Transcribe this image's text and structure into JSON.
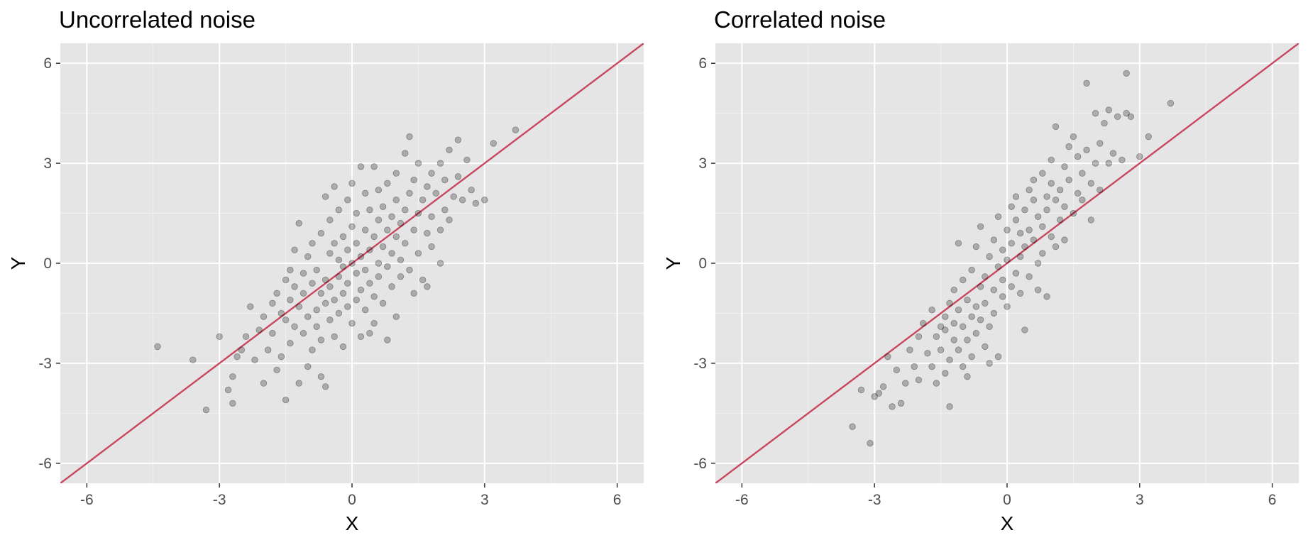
{
  "chart_data": [
    {
      "type": "scatter",
      "title": "Uncorrelated noise",
      "xlabel": "X",
      "ylabel": "Y",
      "xlim": [
        -6.6,
        6.6
      ],
      "ylim": [
        -6.6,
        6.6
      ],
      "xticks": [
        -6,
        -3,
        0,
        3,
        6
      ],
      "yticks": [
        -6,
        -3,
        0,
        3,
        6
      ],
      "xtick_labels": [
        "-6",
        "-3",
        "0",
        "3",
        "6"
      ],
      "ytick_labels": [
        "-6",
        "-3",
        "0",
        "3",
        "6"
      ],
      "grid": true,
      "panel_background": "#e5e5e5",
      "point_color": "#000000",
      "point_alpha": 0.25,
      "reference_line": {
        "slope": 1,
        "intercept": 0,
        "color": "#c8475f"
      },
      "points": [
        [
          -4.4,
          -2.5
        ],
        [
          -3.6,
          -2.9
        ],
        [
          -3.3,
          -4.4
        ],
        [
          -3.0,
          -2.2
        ],
        [
          -2.8,
          -3.8
        ],
        [
          -2.7,
          -4.2
        ],
        [
          -2.7,
          -3.4
        ],
        [
          -2.6,
          -2.8
        ],
        [
          -2.5,
          -2.6
        ],
        [
          -2.4,
          -2.2
        ],
        [
          -2.3,
          -1.3
        ],
        [
          -2.2,
          -2.9
        ],
        [
          -2.1,
          -2.0
        ],
        [
          -2.0,
          -3.6
        ],
        [
          -2.0,
          -1.6
        ],
        [
          -1.9,
          -2.6
        ],
        [
          -1.8,
          -2.1
        ],
        [
          -1.8,
          -1.2
        ],
        [
          -1.7,
          -0.9
        ],
        [
          -1.7,
          -3.2
        ],
        [
          -1.6,
          -1.5
        ],
        [
          -1.6,
          -2.8
        ],
        [
          -1.5,
          -0.5
        ],
        [
          -1.5,
          -1.7
        ],
        [
          -1.5,
          -4.1
        ],
        [
          -1.4,
          -1.1
        ],
        [
          -1.4,
          -0.2
        ],
        [
          -1.4,
          -2.4
        ],
        [
          -1.3,
          -1.9
        ],
        [
          -1.3,
          -0.7
        ],
        [
          -1.3,
          0.4
        ],
        [
          -1.2,
          -3.6
        ],
        [
          -1.2,
          -1.3
        ],
        [
          -1.2,
          1.2
        ],
        [
          -1.1,
          -0.3
        ],
        [
          -1.1,
          -2.1
        ],
        [
          -1.1,
          -0.9
        ],
        [
          -1.0,
          -1.6
        ],
        [
          -1.0,
          0.2
        ],
        [
          -1.0,
          -3.1
        ],
        [
          -0.9,
          -0.6
        ],
        [
          -0.9,
          -2.6
        ],
        [
          -0.9,
          0.6
        ],
        [
          -0.8,
          -1.4
        ],
        [
          -0.8,
          -1.9
        ],
        [
          -0.8,
          -0.2
        ],
        [
          -0.7,
          -2.3
        ],
        [
          -0.7,
          -0.9
        ],
        [
          -0.7,
          0.9
        ],
        [
          -0.7,
          -3.4
        ],
        [
          -0.6,
          -1.2
        ],
        [
          -0.6,
          -0.5
        ],
        [
          -0.6,
          2.0
        ],
        [
          -0.6,
          -3.7
        ],
        [
          -0.5,
          0.3
        ],
        [
          -0.5,
          -1.7
        ],
        [
          -0.5,
          -0.7
        ],
        [
          -0.5,
          1.3
        ],
        [
          -0.4,
          -2.2
        ],
        [
          -0.4,
          -1.1
        ],
        [
          -0.4,
          0.6
        ],
        [
          -0.4,
          2.3
        ],
        [
          -0.3,
          -0.4
        ],
        [
          -0.3,
          -1.5
        ],
        [
          -0.3,
          0.1
        ],
        [
          -0.3,
          1.6
        ],
        [
          -0.2,
          -0.9
        ],
        [
          -0.2,
          -2.5
        ],
        [
          -0.2,
          0.8
        ],
        [
          -0.2,
          -0.1
        ],
        [
          -0.1,
          -1.3
        ],
        [
          -0.1,
          1.9
        ],
        [
          -0.1,
          0.4
        ],
        [
          -0.1,
          -0.6
        ],
        [
          0.0,
          -1.8
        ],
        [
          0.0,
          0.0
        ],
        [
          0.0,
          1.1
        ],
        [
          0.0,
          2.4
        ],
        [
          0.1,
          -0.3
        ],
        [
          0.1,
          -1.1
        ],
        [
          0.1,
          0.6
        ],
        [
          0.1,
          1.5
        ],
        [
          0.2,
          -2.2
        ],
        [
          0.2,
          0.2
        ],
        [
          0.2,
          -0.8
        ],
        [
          0.2,
          2.9
        ],
        [
          0.3,
          1.0
        ],
        [
          0.3,
          -0.2
        ],
        [
          0.3,
          -1.4
        ],
        [
          0.3,
          2.1
        ],
        [
          0.4,
          0.4
        ],
        [
          0.4,
          -0.6
        ],
        [
          0.4,
          1.6
        ],
        [
          0.4,
          -2.1
        ],
        [
          0.5,
          0.8
        ],
        [
          0.5,
          -1.0
        ],
        [
          0.5,
          2.9
        ],
        [
          0.5,
          -1.8
        ],
        [
          0.6,
          0.0
        ],
        [
          0.6,
          1.3
        ],
        [
          0.6,
          -0.4
        ],
        [
          0.6,
          2.2
        ],
        [
          0.7,
          1.7
        ],
        [
          0.7,
          0.5
        ],
        [
          0.7,
          -1.2
        ],
        [
          0.8,
          1.0
        ],
        [
          0.8,
          -0.1
        ],
        [
          0.8,
          -2.3
        ],
        [
          0.8,
          2.4
        ],
        [
          0.9,
          1.4
        ],
        [
          0.9,
          0.3
        ],
        [
          0.9,
          -0.7
        ],
        [
          1.0,
          1.9
        ],
        [
          1.0,
          0.8
        ],
        [
          1.0,
          -1.6
        ],
        [
          1.0,
          2.7
        ],
        [
          1.1,
          1.2
        ],
        [
          1.1,
          0.1
        ],
        [
          1.1,
          -0.4
        ],
        [
          1.2,
          3.3
        ],
        [
          1.2,
          1.6
        ],
        [
          1.2,
          0.6
        ],
        [
          1.3,
          2.1
        ],
        [
          1.3,
          -0.2
        ],
        [
          1.3,
          3.8
        ],
        [
          1.4,
          1.0
        ],
        [
          1.4,
          2.5
        ],
        [
          1.4,
          -0.9
        ],
        [
          1.5,
          1.5
        ],
        [
          1.5,
          0.3
        ],
        [
          1.5,
          3.0
        ],
        [
          1.6,
          1.9
        ],
        [
          1.6,
          -0.5
        ],
        [
          1.7,
          2.3
        ],
        [
          1.7,
          0.9
        ],
        [
          1.7,
          -0.7
        ],
        [
          1.8,
          2.7
        ],
        [
          1.8,
          1.4
        ],
        [
          1.8,
          0.5
        ],
        [
          1.9,
          2.1
        ],
        [
          2.0,
          3.0
        ],
        [
          2.0,
          1.0
        ],
        [
          2.0,
          0.0
        ],
        [
          2.1,
          2.5
        ],
        [
          2.1,
          1.6
        ],
        [
          2.2,
          3.4
        ],
        [
          2.2,
          1.3
        ],
        [
          2.3,
          2.0
        ],
        [
          2.4,
          3.7
        ],
        [
          2.4,
          2.6
        ],
        [
          2.5,
          1.9
        ],
        [
          2.6,
          3.1
        ],
        [
          2.7,
          2.2
        ],
        [
          2.8,
          1.8
        ],
        [
          3.0,
          1.9
        ],
        [
          3.2,
          3.6
        ],
        [
          3.7,
          4.0
        ]
      ]
    },
    {
      "type": "scatter",
      "title": "Correlated noise",
      "xlabel": "X",
      "ylabel": "Y",
      "xlim": [
        -6.6,
        6.6
      ],
      "ylim": [
        -6.6,
        6.6
      ],
      "xticks": [
        -6,
        -3,
        0,
        3,
        6
      ],
      "yticks": [
        -6,
        -3,
        0,
        3,
        6
      ],
      "xtick_labels": [
        "-6",
        "-3",
        "0",
        "3",
        "6"
      ],
      "ytick_labels": [
        "-6",
        "-3",
        "0",
        "3",
        "6"
      ],
      "grid": true,
      "panel_background": "#e5e5e5",
      "point_color": "#000000",
      "point_alpha": 0.25,
      "reference_line": {
        "slope": 1,
        "intercept": 0,
        "color": "#c8475f"
      },
      "points": [
        [
          -3.5,
          -4.9
        ],
        [
          -3.1,
          -5.4
        ],
        [
          -3.3,
          -3.8
        ],
        [
          -3.0,
          -4.0
        ],
        [
          -2.9,
          -3.9
        ],
        [
          -2.8,
          -3.7
        ],
        [
          -2.7,
          -2.8
        ],
        [
          -2.6,
          -4.3
        ],
        [
          -2.5,
          -3.2
        ],
        [
          -2.4,
          -4.2
        ],
        [
          -2.3,
          -3.6
        ],
        [
          -2.2,
          -2.6
        ],
        [
          -2.1,
          -3.1
        ],
        [
          -2.0,
          -2.2
        ],
        [
          -2.0,
          -3.5
        ],
        [
          -1.9,
          -1.8
        ],
        [
          -1.8,
          -2.7
        ],
        [
          -1.7,
          -3.1
        ],
        [
          -1.7,
          -1.4
        ],
        [
          -1.6,
          -2.2
        ],
        [
          -1.6,
          -3.6
        ],
        [
          -1.5,
          -1.9
        ],
        [
          -1.5,
          -2.6
        ],
        [
          -1.4,
          -1.6
        ],
        [
          -1.4,
          -3.3
        ],
        [
          -1.4,
          -2.0
        ],
        [
          -1.3,
          -1.2
        ],
        [
          -1.3,
          -2.9
        ],
        [
          -1.3,
          -4.3
        ],
        [
          -1.2,
          -2.3
        ],
        [
          -1.2,
          -0.8
        ],
        [
          -1.2,
          -1.8
        ],
        [
          -1.1,
          -2.6
        ],
        [
          -1.1,
          -1.4
        ],
        [
          -1.1,
          0.6
        ],
        [
          -1.0,
          -3.1
        ],
        [
          -1.0,
          -1.9
        ],
        [
          -1.0,
          -0.5
        ],
        [
          -0.9,
          -2.3
        ],
        [
          -0.9,
          -1.1
        ],
        [
          -0.9,
          -3.4
        ],
        [
          -0.8,
          -1.6
        ],
        [
          -0.8,
          -0.2
        ],
        [
          -0.8,
          -2.8
        ],
        [
          -0.7,
          -1.3
        ],
        [
          -0.7,
          0.5
        ],
        [
          -0.7,
          -2.1
        ],
        [
          -0.6,
          -0.7
        ],
        [
          -0.6,
          -1.7
        ],
        [
          -0.6,
          1.1
        ],
        [
          -0.5,
          -2.5
        ],
        [
          -0.5,
          -0.4
        ],
        [
          -0.5,
          -1.2
        ],
        [
          -0.4,
          0.2
        ],
        [
          -0.4,
          -1.9
        ],
        [
          -0.4,
          -3.0
        ],
        [
          -0.3,
          -0.8
        ],
        [
          -0.3,
          0.7
        ],
        [
          -0.3,
          -1.5
        ],
        [
          -0.2,
          -0.1
        ],
        [
          -0.2,
          1.4
        ],
        [
          -0.2,
          -2.8
        ],
        [
          -0.1,
          -1.0
        ],
        [
          -0.1,
          0.4
        ],
        [
          -0.1,
          -0.5
        ],
        [
          0.0,
          1.0
        ],
        [
          0.0,
          -1.3
        ],
        [
          0.0,
          0.1
        ],
        [
          0.1,
          1.7
        ],
        [
          0.1,
          -0.7
        ],
        [
          0.1,
          0.6
        ],
        [
          0.2,
          -0.3
        ],
        [
          0.2,
          1.3
        ],
        [
          0.2,
          2.0
        ],
        [
          0.3,
          0.9
        ],
        [
          0.3,
          -0.9
        ],
        [
          0.3,
          0.2
        ],
        [
          0.4,
          1.6
        ],
        [
          0.4,
          -2.0
        ],
        [
          0.4,
          0.5
        ],
        [
          0.5,
          2.2
        ],
        [
          0.5,
          1.0
        ],
        [
          0.5,
          -0.4
        ],
        [
          0.6,
          1.9
        ],
        [
          0.6,
          0.7
        ],
        [
          0.6,
          2.5
        ],
        [
          0.7,
          1.4
        ],
        [
          0.7,
          0.0
        ],
        [
          0.7,
          -0.8
        ],
        [
          0.8,
          2.7
        ],
        [
          0.8,
          1.1
        ],
        [
          0.8,
          0.3
        ],
        [
          0.9,
          2.0
        ],
        [
          0.9,
          1.6
        ],
        [
          0.9,
          -1.0
        ],
        [
          1.0,
          2.4
        ],
        [
          1.0,
          0.8
        ],
        [
          1.0,
          3.1
        ],
        [
          1.1,
          1.9
        ],
        [
          1.1,
          0.5
        ],
        [
          1.1,
          4.1
        ],
        [
          1.2,
          2.2
        ],
        [
          1.2,
          1.3
        ],
        [
          1.3,
          2.9
        ],
        [
          1.3,
          1.7
        ],
        [
          1.3,
          0.7
        ],
        [
          1.4,
          2.5
        ],
        [
          1.4,
          3.5
        ],
        [
          1.5,
          1.5
        ],
        [
          1.5,
          3.8
        ],
        [
          1.6,
          2.1
        ],
        [
          1.6,
          3.2
        ],
        [
          1.7,
          2.7
        ],
        [
          1.7,
          1.9
        ],
        [
          1.8,
          3.4
        ],
        [
          1.8,
          5.4
        ],
        [
          1.9,
          2.4
        ],
        [
          1.9,
          1.3
        ],
        [
          2.0,
          3.0
        ],
        [
          2.0,
          4.5
        ],
        [
          2.1,
          2.2
        ],
        [
          2.1,
          3.6
        ],
        [
          2.2,
          4.2
        ],
        [
          2.3,
          3.0
        ],
        [
          2.3,
          4.6
        ],
        [
          2.4,
          3.3
        ],
        [
          2.5,
          4.4
        ],
        [
          2.6,
          3.1
        ],
        [
          2.7,
          4.5
        ],
        [
          2.7,
          5.7
        ],
        [
          2.8,
          4.4
        ],
        [
          3.0,
          3.2
        ],
        [
          3.2,
          3.8
        ],
        [
          3.7,
          4.8
        ]
      ]
    }
  ]
}
